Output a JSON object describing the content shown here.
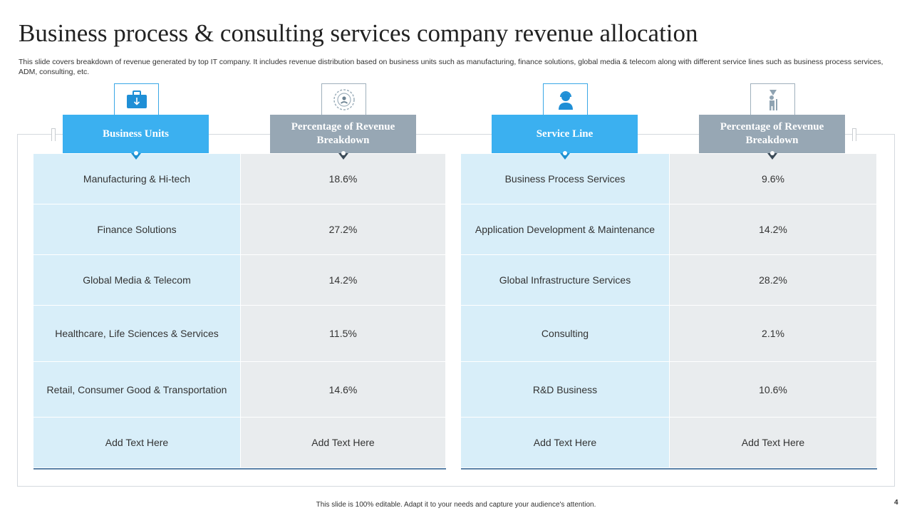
{
  "title": "Business process & consulting services company revenue allocation",
  "subtitle": "This slide covers breakdown of revenue generated by top IT company. It includes revenue distribution based on business units such as manufacturing, finance solutions, global media & telecom along with different service lines such as business process services, ADM, consulting, etc.",
  "icons": {
    "business_units": "briefcase-icon",
    "revenue_left": "network-icon",
    "service_line": "support-agent-icon",
    "revenue_right": "presenter-icon"
  },
  "colors": {
    "accent": "#3bb0f0",
    "header_gray": "#97a7b4",
    "col_light_blue": "#d8eef9",
    "col_light_gray": "#e9ecee"
  },
  "left_table": {
    "headers": [
      "Business Units",
      "Percentage of Revenue Breakdown"
    ],
    "rows": [
      [
        "Manufacturing & Hi-tech",
        "18.6%"
      ],
      [
        "Finance Solutions",
        "27.2%"
      ],
      [
        "Global Media & Telecom",
        "14.2%"
      ],
      [
        "Healthcare, Life Sciences & Services",
        "11.5%"
      ],
      [
        "Retail, Consumer Good & Transportation",
        "14.6%"
      ],
      [
        "Add Text Here",
        "Add Text Here"
      ]
    ]
  },
  "right_table": {
    "headers": [
      "Service Line",
      "Percentage of Revenue Breakdown"
    ],
    "rows": [
      [
        "Business Process Services",
        "9.6%"
      ],
      [
        "Application Development  & Maintenance",
        "14.2%"
      ],
      [
        "Global Infrastructure Services",
        "28.2%"
      ],
      [
        "Consulting",
        "2.1%"
      ],
      [
        "R&D Business",
        "10.6%"
      ],
      [
        "Add Text Here",
        "Add Text Here"
      ]
    ]
  },
  "footer": "This slide is 100% editable.  Adapt it to your needs and capture your audience's attention.",
  "page_number": "4"
}
